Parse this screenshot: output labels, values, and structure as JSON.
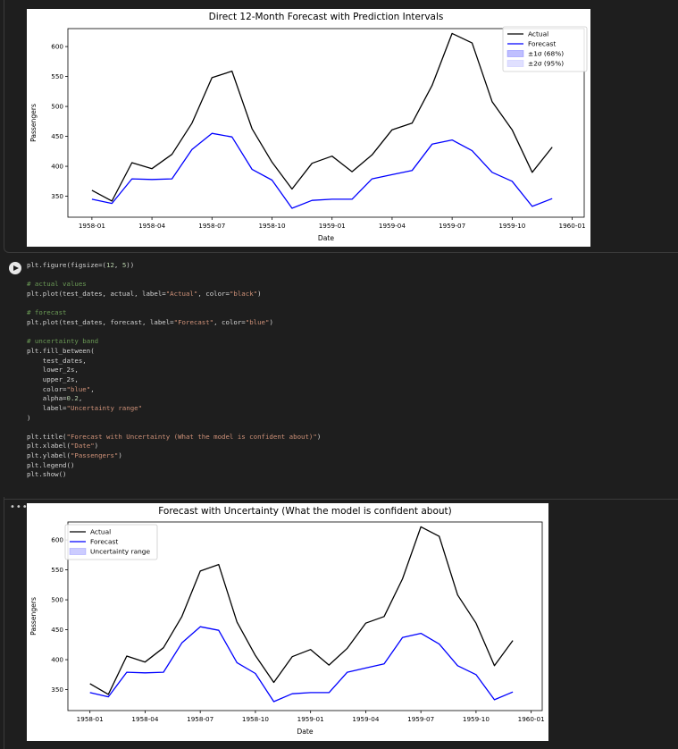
{
  "notebook": {
    "ellipsis": "•••"
  },
  "code_cell": {
    "lines": [
      [
        {
          "t": "plt.figure(figsize=(",
          "c": "kw"
        },
        {
          "t": "12",
          "c": "num"
        },
        {
          "t": ", ",
          "c": "kw"
        },
        {
          "t": "5",
          "c": "num"
        },
        {
          "t": "))",
          "c": "kw"
        }
      ],
      [],
      [
        {
          "t": "# actual values",
          "c": "cmt"
        }
      ],
      [
        {
          "t": "plt.plot(test_dates, actual, label=",
          "c": "kw"
        },
        {
          "t": "\"Actual\"",
          "c": "str"
        },
        {
          "t": ", color=",
          "c": "kw"
        },
        {
          "t": "\"black\"",
          "c": "str"
        },
        {
          "t": ")",
          "c": "kw"
        }
      ],
      [],
      [
        {
          "t": "# forecast",
          "c": "cmt"
        }
      ],
      [
        {
          "t": "plt.plot(test_dates, forecast, label=",
          "c": "kw"
        },
        {
          "t": "\"Forecast\"",
          "c": "str"
        },
        {
          "t": ", color=",
          "c": "kw"
        },
        {
          "t": "\"blue\"",
          "c": "str"
        },
        {
          "t": ")",
          "c": "kw"
        }
      ],
      [],
      [
        {
          "t": "# uncertainty band",
          "c": "cmt"
        }
      ],
      [
        {
          "t": "plt.fill_between(",
          "c": "kw"
        }
      ],
      [
        {
          "t": "    test_dates,",
          "c": "kw"
        }
      ],
      [
        {
          "t": "    lower_2s,",
          "c": "kw"
        }
      ],
      [
        {
          "t": "    upper_2s,",
          "c": "kw"
        }
      ],
      [
        {
          "t": "    color=",
          "c": "kw"
        },
        {
          "t": "\"blue\"",
          "c": "str"
        },
        {
          "t": ",",
          "c": "kw"
        }
      ],
      [
        {
          "t": "    alpha=",
          "c": "kw"
        },
        {
          "t": "0.2",
          "c": "num"
        },
        {
          "t": ",",
          "c": "kw"
        }
      ],
      [
        {
          "t": "    label=",
          "c": "kw"
        },
        {
          "t": "\"Uncertainty range\"",
          "c": "str"
        }
      ],
      [
        {
          "t": ")",
          "c": "kw"
        }
      ],
      [],
      [
        {
          "t": "plt.title(",
          "c": "kw"
        },
        {
          "t": "\"Forecast with Uncertainty (What the model is confident about)\"",
          "c": "str"
        },
        {
          "t": ")",
          "c": "kw"
        }
      ],
      [
        {
          "t": "plt.xlabel(",
          "c": "kw"
        },
        {
          "t": "\"Date\"",
          "c": "str"
        },
        {
          "t": ")",
          "c": "kw"
        }
      ],
      [
        {
          "t": "plt.ylabel(",
          "c": "kw"
        },
        {
          "t": "\"Passengers\"",
          "c": "str"
        },
        {
          "t": ")",
          "c": "kw"
        }
      ],
      [
        {
          "t": "plt.legend()",
          "c": "kw"
        }
      ],
      [
        {
          "t": "plt.show()",
          "c": "kw"
        }
      ]
    ]
  },
  "chart_data": [
    {
      "type": "line",
      "title": "Direct 12-Month Forecast with Prediction Intervals",
      "xlabel": "Date",
      "ylabel": "Passengers",
      "x": [
        "1958-01",
        "1958-02",
        "1958-03",
        "1958-04",
        "1958-05",
        "1958-06",
        "1958-07",
        "1958-08",
        "1958-09",
        "1958-10",
        "1958-11",
        "1958-12",
        "1959-01",
        "1959-02",
        "1959-03",
        "1959-04",
        "1959-05",
        "1959-06",
        "1959-07",
        "1959-08",
        "1959-09",
        "1959-10",
        "1959-11",
        "1959-12"
      ],
      "xticks": [
        "1958-01",
        "1958-04",
        "1958-07",
        "1958-10",
        "1959-01",
        "1959-04",
        "1959-07",
        "1959-10",
        "1960-01"
      ],
      "yticks": [
        350,
        400,
        450,
        500,
        550,
        600
      ],
      "ylim": [
        315,
        630
      ],
      "legend_position": "top-right",
      "legend": [
        {
          "label": "Actual",
          "kind": "line",
          "color": "#000000"
        },
        {
          "label": "Forecast",
          "kind": "line",
          "color": "#0000ff"
        },
        {
          "label": "±1σ (68%)",
          "kind": "patch",
          "color": "#0000ff",
          "alpha": 0.25
        },
        {
          "label": "±2σ (95%)",
          "kind": "patch",
          "color": "#0000ff",
          "alpha": 0.12
        }
      ],
      "series": [
        {
          "name": "Actual",
          "color": "#000000",
          "values": [
            360,
            342,
            406,
            396,
            420,
            472,
            548,
            559,
            463,
            407,
            362,
            405,
            417,
            391,
            419,
            461,
            472,
            535,
            622,
            606,
            508,
            461,
            390,
            432
          ]
        },
        {
          "name": "Forecast",
          "color": "#0000ff",
          "values": [
            345,
            338,
            379,
            378,
            379,
            428,
            455,
            449,
            395,
            377,
            330,
            343,
            345,
            345,
            379,
            386,
            393,
            437,
            444,
            426,
            390,
            375,
            333,
            346
          ]
        }
      ]
    },
    {
      "type": "line",
      "title": "Forecast with Uncertainty (What the model is confident about)",
      "xlabel": "Date",
      "ylabel": "Passengers",
      "x": [
        "1958-01",
        "1958-02",
        "1958-03",
        "1958-04",
        "1958-05",
        "1958-06",
        "1958-07",
        "1958-08",
        "1958-09",
        "1958-10",
        "1958-11",
        "1958-12",
        "1959-01",
        "1959-02",
        "1959-03",
        "1959-04",
        "1959-05",
        "1959-06",
        "1959-07",
        "1959-08",
        "1959-09",
        "1959-10",
        "1959-11",
        "1959-12"
      ],
      "xticks": [
        "1958-01",
        "1958-04",
        "1958-07",
        "1958-10",
        "1959-01",
        "1959-04",
        "1959-07",
        "1959-10",
        "1960-01"
      ],
      "yticks": [
        350,
        400,
        450,
        500,
        550,
        600
      ],
      "ylim": [
        315,
        630
      ],
      "legend_position": "top-left",
      "legend": [
        {
          "label": "Actual",
          "kind": "line",
          "color": "#000000"
        },
        {
          "label": "Forecast",
          "kind": "line",
          "color": "#0000ff"
        },
        {
          "label": "Uncertainty range",
          "kind": "patch",
          "color": "#0000ff",
          "alpha": 0.2
        }
      ],
      "series": [
        {
          "name": "Actual",
          "color": "#000000",
          "values": [
            360,
            342,
            406,
            396,
            420,
            472,
            548,
            559,
            463,
            407,
            362,
            405,
            417,
            391,
            419,
            461,
            472,
            535,
            622,
            606,
            508,
            461,
            390,
            432
          ]
        },
        {
          "name": "Forecast",
          "color": "#0000ff",
          "values": [
            345,
            338,
            379,
            378,
            379,
            428,
            455,
            449,
            395,
            377,
            330,
            343,
            345,
            345,
            379,
            386,
            393,
            437,
            444,
            426,
            390,
            375,
            333,
            346
          ]
        }
      ]
    }
  ]
}
